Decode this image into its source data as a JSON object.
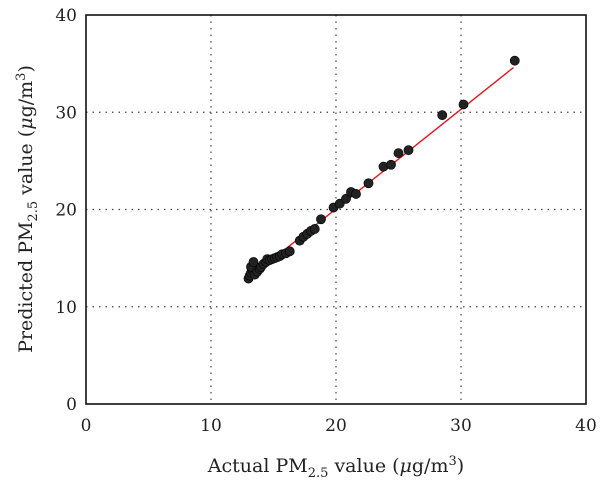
{
  "chart_data": {
    "type": "scatter",
    "title": "",
    "xlabel": {
      "main": "Actual PM",
      "sub": "2.5",
      "rest": " value (",
      "mu": "μ",
      "unit": "g/m",
      "sup": "3",
      "close": ")"
    },
    "ylabel": {
      "main": "Predicted PM",
      "sub": "2.5",
      "rest": " value (",
      "mu": "μ",
      "unit": "g/m",
      "sup": "3",
      "close": ")"
    },
    "xlim": [
      0,
      40
    ],
    "ylim": [
      0,
      40
    ],
    "xticks": [
      0,
      10,
      20,
      30,
      40
    ],
    "yticks": [
      0,
      10,
      20,
      30,
      40
    ],
    "grid": true,
    "marker_color": "#222222",
    "line_color": "#e0141b",
    "series": [
      {
        "type": "scatter",
        "points": [
          [
            13.0,
            12.9
          ],
          [
            13.1,
            13.2
          ],
          [
            13.2,
            13.5
          ],
          [
            13.3,
            13.8
          ],
          [
            13.2,
            14.1
          ],
          [
            13.4,
            14.6
          ],
          [
            13.5,
            13.3
          ],
          [
            13.7,
            13.6
          ],
          [
            13.9,
            13.9
          ],
          [
            14.0,
            14.1
          ],
          [
            14.2,
            14.4
          ],
          [
            14.4,
            14.6
          ],
          [
            14.5,
            14.9
          ],
          [
            14.7,
            14.8
          ],
          [
            14.9,
            14.9
          ],
          [
            15.1,
            15.0
          ],
          [
            15.3,
            15.1
          ],
          [
            15.5,
            15.2
          ],
          [
            15.7,
            15.4
          ],
          [
            16.0,
            15.5
          ],
          [
            16.3,
            15.7
          ],
          [
            17.1,
            16.8
          ],
          [
            17.4,
            17.2
          ],
          [
            17.7,
            17.5
          ],
          [
            18.0,
            17.8
          ],
          [
            18.3,
            18.0
          ],
          [
            18.8,
            19.0
          ],
          [
            19.8,
            20.2
          ],
          [
            20.3,
            20.6
          ],
          [
            20.8,
            21.1
          ],
          [
            21.2,
            21.8
          ],
          [
            21.6,
            21.6
          ],
          [
            22.6,
            22.7
          ],
          [
            23.8,
            24.4
          ],
          [
            24.4,
            24.6
          ],
          [
            25.0,
            25.8
          ],
          [
            25.8,
            26.1
          ],
          [
            28.5,
            29.7
          ],
          [
            30.2,
            30.8
          ],
          [
            34.3,
            35.3
          ]
        ]
      },
      {
        "type": "line",
        "points": [
          [
            13.0,
            12.9
          ],
          [
            34.2,
            34.6
          ]
        ]
      }
    ]
  }
}
